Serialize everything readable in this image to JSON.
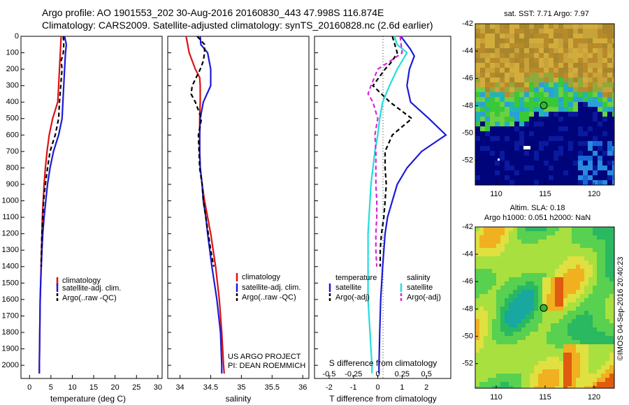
{
  "header": {
    "line1": "Argo profile: AO 1901553_202 30-Aug-2016 20160830_443 47.998S 116.874E",
    "line2": "Climatology: CARS2009. Satellite-adjusted climatology: synTS_20160828.nc (2.6d earlier)"
  },
  "colors": {
    "climatology": "#dd1111",
    "satellite": "#1a1ad6",
    "argo": "#000000",
    "satellite_salinity": "#22dddd",
    "argo_salinity": "#dd22dd"
  },
  "depth_ticks": [
    "0",
    "100",
    "200",
    "300",
    "400",
    "500",
    "600",
    "700",
    "800",
    "900",
    "1000",
    "1100",
    "1200",
    "1300",
    "1400",
    "1500",
    "1600",
    "1700",
    "1800",
    "1900",
    "2000"
  ],
  "panels": {
    "temperature": {
      "xlabel": "temperature (deg C)",
      "xticks": [
        "0",
        "5",
        "10",
        "15",
        "20",
        "25",
        "30"
      ],
      "legend": [
        "climatology",
        "satellite-adj. clim.",
        "Argo(..raw -QC)"
      ]
    },
    "salinity": {
      "xlabel": "salinity",
      "xticks": [
        "34",
        "34.5",
        "35",
        "35.5",
        "36"
      ],
      "legend": [
        "climatology",
        "satellite-adj. clim.",
        "Argo(..raw -QC)"
      ],
      "credit1": "US ARGO PROJECT",
      "credit2": "PI: DEAN ROEMMICH"
    },
    "difference": {
      "xlabel_bottom": "T difference from climatology",
      "xlabel_top": "S difference from climatology",
      "xticks_T": [
        "-2",
        "-1",
        "0",
        "1",
        "2"
      ],
      "xticks_S": [
        "-0.5",
        "-0.25",
        "0",
        "0.25",
        "0.5"
      ],
      "legend_temp_title": "temperature",
      "legend_sal_title": "salinity",
      "legend_temp": [
        "satellite",
        "Argo(-adj)"
      ],
      "legend_sal": [
        "satellite",
        "Argo(-adj)"
      ]
    }
  },
  "maps": {
    "sst": {
      "title": "sat. SST: 7.71 Argo: 7.97",
      "yticks": [
        "-42",
        "-44",
        "-46",
        "-48",
        "-50",
        "-52"
      ],
      "xticks": [
        "110",
        "115",
        "120"
      ]
    },
    "sla": {
      "title1": "Altim. SLA: 0.18",
      "title2": "Argo h1000: 0.051 h2000: NaN",
      "yticks": [
        "-42",
        "-44",
        "-46",
        "-48",
        "-50",
        "-52"
      ],
      "xticks": [
        "110",
        "115",
        "120"
      ],
      "credit": "©IMOS 04-Sep-2016 20:40:23"
    }
  },
  "chart_data": [
    {
      "type": "line",
      "title": "",
      "xlabel": "temperature (deg C)",
      "ylabel": "",
      "xlim": [
        -2,
        31
      ],
      "ylim": [
        2080,
        0
      ],
      "series": [
        {
          "name": "climatology",
          "depth": [
            0,
            100,
            200,
            300,
            400,
            500,
            600,
            700,
            800,
            900,
            1000,
            1100,
            1200,
            1300,
            1400,
            1500,
            1600,
            1700,
            1800,
            1900,
            2000,
            2050
          ],
          "values": [
            7.4,
            7.2,
            7.0,
            6.8,
            6.6,
            5.4,
            4.6,
            4.1,
            3.7,
            3.4,
            3.2,
            3.0,
            2.9,
            2.8,
            2.7,
            2.6,
            2.5,
            2.45,
            2.4,
            2.35,
            2.3,
            2.3
          ]
        },
        {
          "name": "satellite-adj. clim.",
          "depth": [
            0,
            50,
            100,
            200,
            300,
            400,
            500,
            600,
            700,
            800,
            900,
            1000,
            1100,
            1200,
            1300,
            1400,
            1500,
            1600,
            1700,
            1800,
            1900,
            2000,
            2050
          ],
          "values": [
            8.2,
            8.6,
            8.4,
            8.2,
            8.0,
            7.8,
            7.6,
            6.8,
            5.6,
            4.8,
            4.2,
            3.8,
            3.4,
            3.1,
            2.9,
            2.75,
            2.6,
            2.5,
            2.45,
            2.4,
            2.35,
            2.3,
            2.3
          ]
        },
        {
          "name": "Argo(..raw -QC)",
          "depth": [
            0,
            50,
            100,
            150,
            200,
            300,
            400,
            500,
            600,
            700,
            800,
            900,
            1000,
            1100,
            1200,
            1300,
            1400
          ],
          "values": [
            7.9,
            8.0,
            7.9,
            7.4,
            7.6,
            7.3,
            7.0,
            6.8,
            6.0,
            4.8,
            4.2,
            3.7,
            3.3,
            3.1,
            2.9,
            2.8,
            2.7
          ]
        }
      ]
    },
    {
      "type": "line",
      "title": "",
      "xlabel": "salinity",
      "ylabel": "",
      "xlim": [
        33.8,
        36.1
      ],
      "ylim": [
        2080,
        0
      ],
      "series": [
        {
          "name": "climatology",
          "depth": [
            0,
            100,
            200,
            250,
            300,
            400,
            500,
            600,
            700,
            800,
            900,
            1000,
            1200,
            1400,
            1600,
            1800,
            2000,
            2050
          ],
          "values": [
            34.1,
            34.15,
            34.25,
            34.32,
            34.33,
            34.33,
            34.32,
            34.32,
            34.32,
            34.33,
            34.36,
            34.4,
            34.5,
            34.58,
            34.64,
            34.68,
            34.71,
            34.72
          ]
        },
        {
          "name": "satellite-adj. clim.",
          "depth": [
            0,
            50,
            100,
            200,
            300,
            400,
            500,
            600,
            700,
            800,
            900,
            1000,
            1100,
            1200,
            1400,
            1600,
            1800,
            2000,
            2050
          ],
          "values": [
            34.33,
            34.34,
            34.45,
            34.5,
            34.5,
            34.38,
            34.33,
            34.32,
            34.32,
            34.33,
            34.36,
            34.38,
            34.42,
            34.45,
            34.52,
            34.6,
            34.66,
            34.68,
            34.68
          ]
        },
        {
          "name": "Argo(..raw -QC)",
          "depth": [
            0,
            50,
            100,
            150,
            200,
            300,
            350,
            400,
            500,
            600,
            700,
            800,
            900,
            1000,
            1100,
            1200,
            1300,
            1400
          ],
          "values": [
            34.28,
            34.4,
            34.4,
            34.38,
            34.33,
            34.2,
            34.18,
            34.25,
            34.35,
            34.3,
            34.31,
            34.32,
            34.36,
            34.38,
            34.42,
            34.46,
            34.5,
            34.55
          ]
        }
      ]
    },
    {
      "type": "line",
      "title": "",
      "xlabel": "T difference from climatology",
      "ylabel": "",
      "xlim": [
        -2.6,
        3.0
      ],
      "ylim": [
        2080,
        0
      ],
      "series": [
        {
          "name": "temperature satellite",
          "depth": [
            0,
            80,
            120,
            200,
            300,
            400,
            500,
            600,
            700,
            800,
            900,
            1000,
            1100,
            1200,
            1400,
            1600,
            1800,
            2000,
            2050
          ],
          "values": [
            0.95,
            1.35,
            1.5,
            1.3,
            1.2,
            1.35,
            2.1,
            2.8,
            1.8,
            1.2,
            0.8,
            0.6,
            0.4,
            0.3,
            0.2,
            0.12,
            0.08,
            0.05,
            0.05
          ]
        },
        {
          "name": "temperature Argo(-adj)",
          "depth": [
            0,
            100,
            150,
            200,
            300,
            400,
            500,
            600,
            700,
            800,
            900,
            1000,
            1100,
            1200,
            1300,
            1400
          ],
          "values": [
            0.6,
            0.8,
            0.6,
            0.3,
            -0.2,
            0.5,
            1.4,
            0.6,
            0.3,
            0.3,
            0.35,
            0.3,
            0.25,
            0.15,
            0.1,
            0.1
          ]
        },
        {
          "name": "salinity satellite",
          "depth": [
            0,
            50,
            100,
            200,
            300,
            400,
            500,
            600,
            700,
            800,
            900,
            1000,
            1200,
            1400,
            1600,
            1800,
            2000,
            2050
          ],
          "values": [
            0.17,
            0.2,
            0.3,
            0.2,
            0.12,
            0.05,
            0.02,
            0.0,
            -0.03,
            -0.05,
            -0.07,
            -0.08,
            -0.1,
            -0.1,
            -0.1,
            -0.08,
            -0.06,
            -0.06
          ]
        },
        {
          "name": "salinity Argo(-adj)",
          "depth": [
            0,
            100,
            150,
            200,
            300,
            350,
            400,
            500,
            600,
            700,
            800,
            900,
            1000,
            1100,
            1200,
            1300,
            1400
          ],
          "values": [
            0.23,
            0.25,
            0.13,
            0.0,
            -0.07,
            -0.1,
            -0.05,
            0.0,
            -0.03,
            -0.02,
            -0.02,
            -0.02,
            -0.01,
            -0.01,
            -0.02,
            -0.02,
            -0.01
          ]
        }
      ]
    }
  ]
}
